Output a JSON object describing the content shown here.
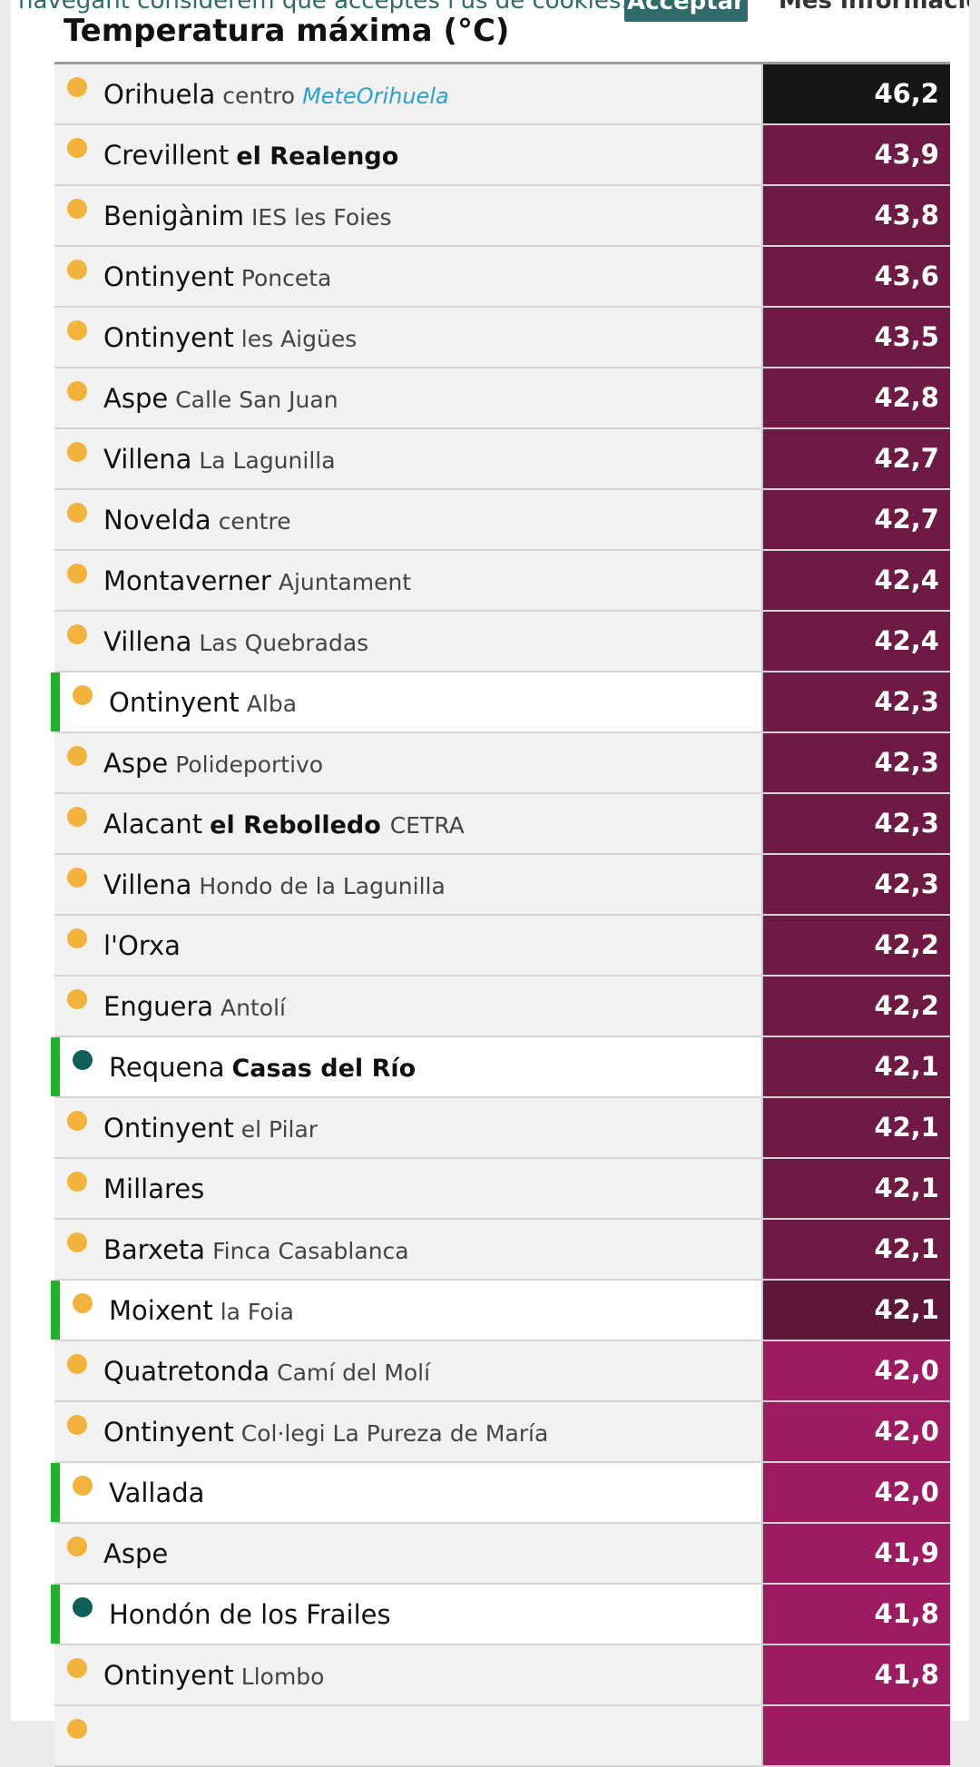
{
  "cookie": {
    "text": "navegant considerem que acceptes l'ús de cookies.",
    "accept": "Acceptar",
    "more": "Més informació"
  },
  "title": "Temperatura máxima (°C)",
  "colors": {
    "highlight_bar": "#1fb52a",
    "dot_yellow": "#f2b33d",
    "dot_teal": "#0f5f5b",
    "val_black": "#161616",
    "val_maroon": "#6e1a45",
    "val_dark_maroon": "#5e163b",
    "val_magenta": "#9c1b61"
  },
  "rows": [
    {
      "city": "Orihuela",
      "sub": "centro",
      "extra": "MeteOrihuela",
      "value": "46,2",
      "dot": "yellow",
      "hl": false,
      "color": "#161616",
      "subStyle": "normal",
      "extraStyle": "brand"
    },
    {
      "city": "Crevillent",
      "sub": "el Realengo",
      "extra": "",
      "value": "43,9",
      "dot": "yellow",
      "hl": false,
      "color": "#6e1a45",
      "subStyle": "bold"
    },
    {
      "city": "Benigànim",
      "sub": "IES les Foies",
      "extra": "",
      "value": "43,8",
      "dot": "yellow",
      "hl": false,
      "color": "#6e1a45",
      "subStyle": "normal"
    },
    {
      "city": "Ontinyent",
      "sub": "Ponceta",
      "extra": "",
      "value": "43,6",
      "dot": "yellow",
      "hl": false,
      "color": "#6e1a45",
      "subStyle": "normal"
    },
    {
      "city": "Ontinyent",
      "sub": "les Aigües",
      "extra": "",
      "value": "43,5",
      "dot": "yellow",
      "hl": false,
      "color": "#6e1a45",
      "subStyle": "normal"
    },
    {
      "city": "Aspe",
      "sub": "Calle San Juan",
      "extra": "",
      "value": "42,8",
      "dot": "yellow",
      "hl": false,
      "color": "#6e1a45",
      "subStyle": "normal"
    },
    {
      "city": "Villena",
      "sub": "La Lagunilla",
      "extra": "",
      "value": "42,7",
      "dot": "yellow",
      "hl": false,
      "color": "#6e1a45",
      "subStyle": "normal"
    },
    {
      "city": "Novelda",
      "sub": "centre",
      "extra": "",
      "value": "42,7",
      "dot": "yellow",
      "hl": false,
      "color": "#6e1a45",
      "subStyle": "normal"
    },
    {
      "city": "Montaverner",
      "sub": "Ajuntament",
      "extra": "",
      "value": "42,4",
      "dot": "yellow",
      "hl": false,
      "color": "#6e1a45",
      "subStyle": "normal"
    },
    {
      "city": "Villena",
      "sub": "Las Quebradas",
      "extra": "",
      "value": "42,4",
      "dot": "yellow",
      "hl": false,
      "color": "#6e1a45",
      "subStyle": "normal"
    },
    {
      "city": "Ontinyent",
      "sub": "Alba",
      "extra": "",
      "value": "42,3",
      "dot": "yellow",
      "hl": true,
      "color": "#6e1a45",
      "subStyle": "normal"
    },
    {
      "city": "Aspe",
      "sub": "Polideportivo",
      "extra": "",
      "value": "42,3",
      "dot": "yellow",
      "hl": false,
      "color": "#6e1a45",
      "subStyle": "normal"
    },
    {
      "city": "Alacant",
      "sub": "el Rebolledo",
      "extra": "CETRA",
      "value": "42,3",
      "dot": "yellow",
      "hl": false,
      "color": "#6e1a45",
      "subStyle": "bold"
    },
    {
      "city": "Villena",
      "sub": "Hondo de la Lagunilla",
      "extra": "",
      "value": "42,3",
      "dot": "yellow",
      "hl": false,
      "color": "#6e1a45",
      "subStyle": "normal"
    },
    {
      "city": "l'Orxa",
      "sub": "",
      "extra": "",
      "value": "42,2",
      "dot": "yellow",
      "hl": false,
      "color": "#6e1a45",
      "subStyle": "normal"
    },
    {
      "city": "Enguera",
      "sub": "Antolí",
      "extra": "",
      "value": "42,2",
      "dot": "yellow",
      "hl": false,
      "color": "#6e1a45",
      "subStyle": "normal"
    },
    {
      "city": "Requena",
      "sub": "Casas del Río",
      "extra": "",
      "value": "42,1",
      "dot": "teal",
      "hl": true,
      "color": "#6e1a45",
      "subStyle": "bold"
    },
    {
      "city": "Ontinyent",
      "sub": "el Pilar",
      "extra": "",
      "value": "42,1",
      "dot": "yellow",
      "hl": false,
      "color": "#6e1a45",
      "subStyle": "normal"
    },
    {
      "city": "Millares",
      "sub": "",
      "extra": "",
      "value": "42,1",
      "dot": "yellow",
      "hl": false,
      "color": "#6e1a45",
      "subStyle": "normal"
    },
    {
      "city": "Barxeta",
      "sub": "Finca Casablanca",
      "extra": "",
      "value": "42,1",
      "dot": "yellow",
      "hl": false,
      "color": "#6e1a45",
      "subStyle": "normal"
    },
    {
      "city": "Moixent",
      "sub": "la Foia",
      "extra": "",
      "value": "42,1",
      "dot": "yellow",
      "hl": true,
      "color": "#5e163b",
      "subStyle": "normal"
    },
    {
      "city": "Quatretonda",
      "sub": "Camí del Molí",
      "extra": "",
      "value": "42,0",
      "dot": "yellow",
      "hl": false,
      "color": "#9c1b61",
      "subStyle": "normal"
    },
    {
      "city": "Ontinyent",
      "sub": "Col·legi La Pureza de María",
      "extra": "",
      "value": "42,0",
      "dot": "yellow",
      "hl": false,
      "color": "#9c1b61",
      "subStyle": "normal"
    },
    {
      "city": "Vallada",
      "sub": "",
      "extra": "",
      "value": "42,0",
      "dot": "yellow",
      "hl": true,
      "color": "#9c1b61",
      "subStyle": "normal"
    },
    {
      "city": "Aspe",
      "sub": "",
      "extra": "",
      "value": "41,9",
      "dot": "yellow",
      "hl": false,
      "color": "#9c1b61",
      "subStyle": "normal"
    },
    {
      "city": "Hondón de los Frailes",
      "sub": "",
      "extra": "",
      "value": "41,8",
      "dot": "teal",
      "hl": true,
      "color": "#9c1b61",
      "subStyle": "normal"
    },
    {
      "city": "Ontinyent",
      "sub": "Llombo",
      "extra": "",
      "value": "41,8",
      "dot": "yellow",
      "hl": false,
      "color": "#9c1b61",
      "subStyle": "normal"
    },
    {
      "city": "",
      "sub": "",
      "extra": "",
      "value": "",
      "dot": "yellow",
      "hl": false,
      "color": "#9c1b61",
      "subStyle": "normal"
    }
  ]
}
